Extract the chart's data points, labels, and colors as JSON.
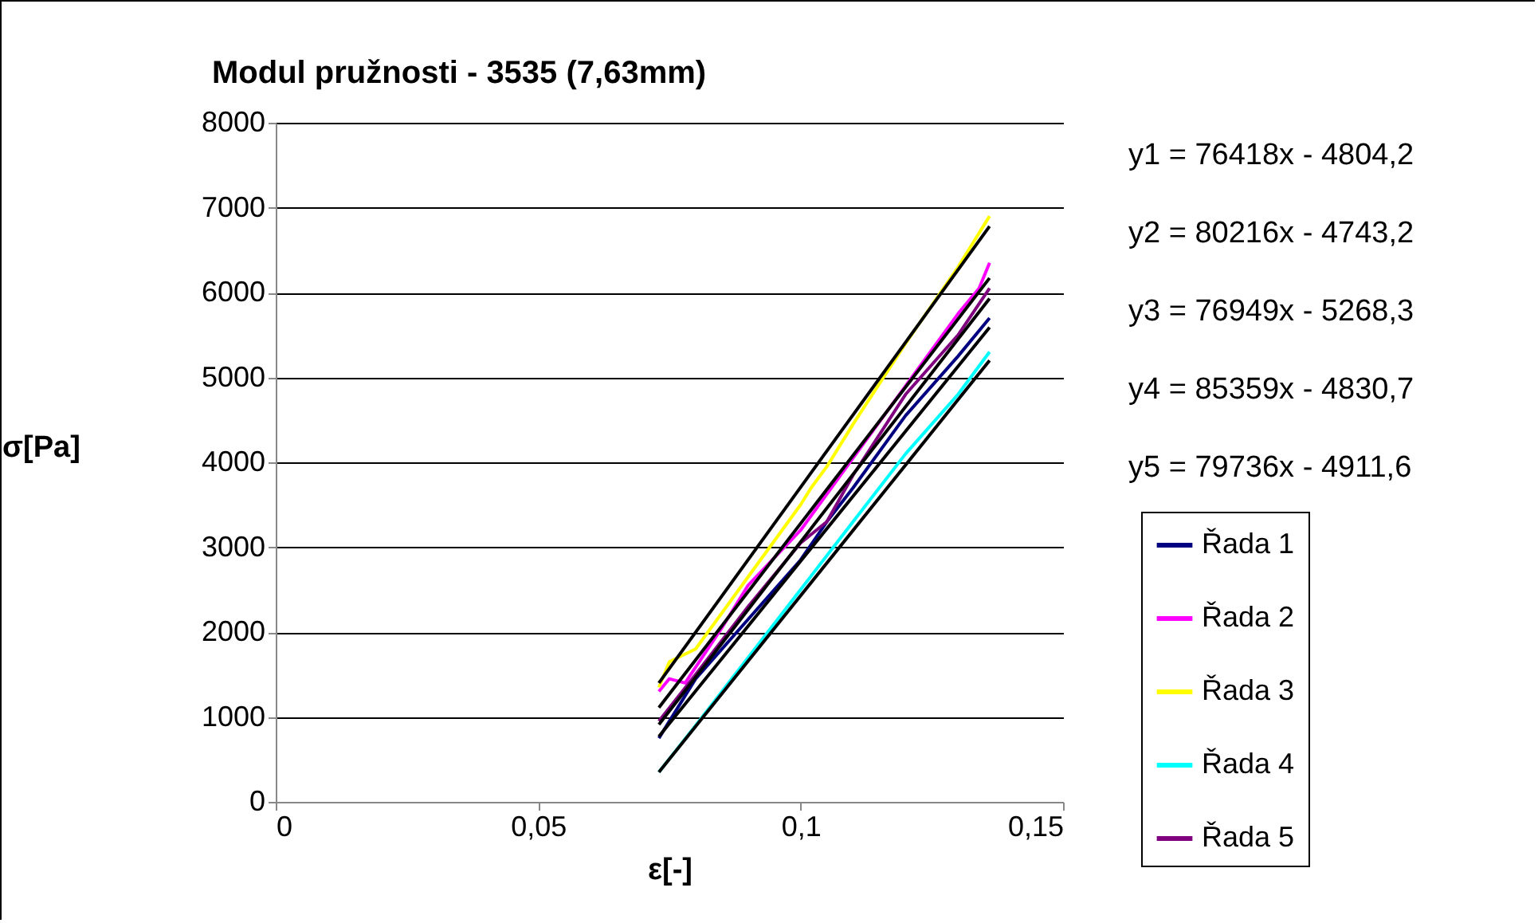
{
  "chart_data": {
    "type": "line",
    "title": "Modul pružnosti - 3535 (7,63mm)",
    "xlabel": "ε[-]",
    "ylabel": "σ[Pa]",
    "xlim": [
      0,
      0.15
    ],
    "xticks": [
      0,
      {
        "value": 0.05,
        "label": "0,05"
      },
      {
        "value": 0.1,
        "label": "0,1"
      },
      {
        "value": 0.15,
        "label": "0,15"
      }
    ],
    "ylim": [
      0,
      8000
    ],
    "yticks": [
      0,
      1000,
      2000,
      3000,
      4000,
      5000,
      6000,
      7000,
      8000
    ],
    "grid": "y",
    "legend": "right",
    "marker": "none",
    "line_style": "solid",
    "annotations": [
      "y1 = 76418x - 4804,2",
      "y2 = 80216x - 4743,2",
      "y3 = 76949x - 5268,3",
      "y4 = 85359x - 4830,7",
      "y5 = 79736x - 4911,6"
    ],
    "series": [
      {
        "name": "Řada 1",
        "color": "#000080",
        "x": [
          0.073,
          0.08,
          0.09,
          0.1,
          0.105,
          0.11,
          0.12,
          0.13,
          0.136
        ],
        "values": [
          750,
          1450,
          2150,
          2850,
          3300,
          3700,
          4550,
          5250,
          5700
        ]
      },
      {
        "name": "Řada 2",
        "color": "#ff00ff",
        "x": [
          0.073,
          0.075,
          0.078,
          0.085,
          0.09,
          0.1,
          0.11,
          0.12,
          0.13,
          0.134,
          0.136
        ],
        "values": [
          1300,
          1450,
          1400,
          2050,
          2550,
          3200,
          4050,
          4900,
          5750,
          6050,
          6350
        ]
      },
      {
        "name": "Řada 3",
        "color": "#ffff00",
        "x": [
          0.073,
          0.075,
          0.08,
          0.09,
          0.1,
          0.102,
          0.105,
          0.11,
          0.12,
          0.13,
          0.136
        ],
        "values": [
          1350,
          1650,
          1800,
          2650,
          3500,
          3700,
          3950,
          4450,
          5400,
          6300,
          6900
        ]
      },
      {
        "name": "Řada 4",
        "color": "#00ffff",
        "x": [
          0.073,
          0.08,
          0.09,
          0.1,
          0.11,
          0.12,
          0.13,
          0.136
        ],
        "values": [
          350,
          900,
          1700,
          2500,
          3300,
          4100,
          4800,
          5300
        ]
      },
      {
        "name": "Řada 5",
        "color": "#800080",
        "x": [
          0.073,
          0.08,
          0.09,
          0.1,
          0.105,
          0.11,
          0.12,
          0.13,
          0.136
        ],
        "values": [
          950,
          1500,
          2300,
          3050,
          3300,
          3850,
          4800,
          5500,
          6050
        ]
      },
      {
        "type": "line",
        "color": "#000000",
        "x": [
          0.073,
          0.136
        ],
        "values": [
          770,
          5590
        ]
      },
      {
        "type": "line",
        "color": "#000000",
        "x": [
          0.073,
          0.136
        ],
        "values": [
          1110,
          6170
        ]
      },
      {
        "type": "line",
        "color": "#000000",
        "x": [
          0.073,
          0.136
        ],
        "values": [
          350,
          5200
        ]
      },
      {
        "type": "line",
        "color": "#000000",
        "x": [
          0.073,
          0.136
        ],
        "values": [
          1400,
          6780
        ]
      },
      {
        "type": "line",
        "color": "#000000",
        "x": [
          0.073,
          0.136
        ],
        "values": [
          910,
          5930
        ]
      }
    ]
  }
}
